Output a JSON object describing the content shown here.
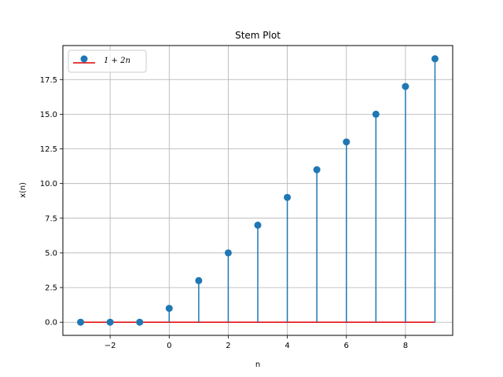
{
  "chart_data": {
    "type": "stem",
    "title": "Stem Plot",
    "xlabel": "n",
    "ylabel": "x(n)",
    "xlim": [
      -3.6,
      9.6
    ],
    "ylim": [
      -0.95,
      19.95
    ],
    "xticks": [
      -2,
      0,
      2,
      4,
      6,
      8
    ],
    "xtick_labels": [
      "−2",
      "0",
      "2",
      "4",
      "6",
      "8"
    ],
    "yticks": [
      0,
      2.5,
      5,
      7.5,
      10,
      12.5,
      15,
      17.5
    ],
    "ytick_labels": [
      "0.0",
      "2.5",
      "5.0",
      "7.5",
      "10.0",
      "12.5",
      "15.0",
      "17.5"
    ],
    "grid": true,
    "legend_position": "top-left",
    "series": [
      {
        "name": "1 + 2n",
        "x": [
          -3,
          -2,
          -1,
          0,
          1,
          2,
          3,
          4,
          5,
          6,
          7,
          8,
          9
        ],
        "y": [
          0,
          0,
          0,
          1,
          3,
          5,
          7,
          9,
          11,
          13,
          15,
          17,
          19
        ],
        "marker_color": "#1f77b4",
        "stem_color": "#1f77b4",
        "baseline_color": "#e00000"
      }
    ]
  }
}
